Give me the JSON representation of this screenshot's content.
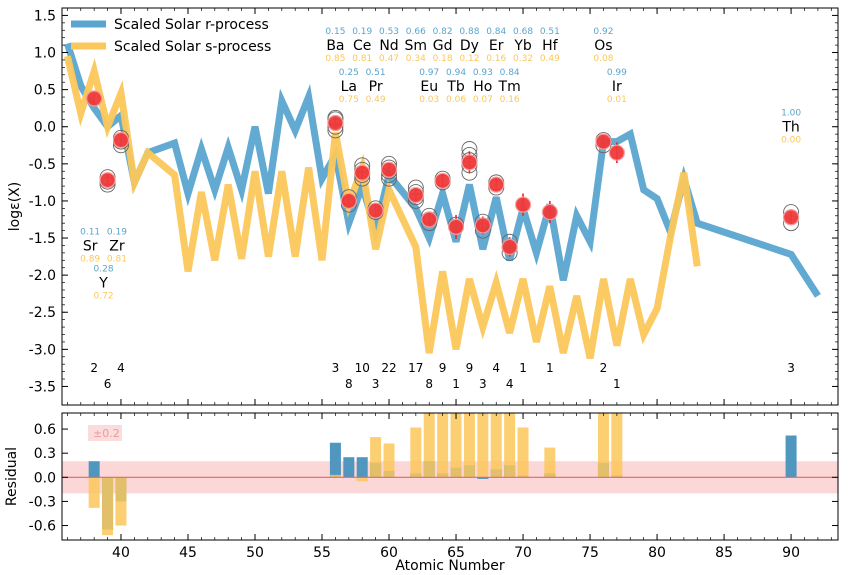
{
  "chart_data": [
    {
      "type": "line",
      "panel": "main",
      "xlabel": "Atomic Number",
      "ylabel": "logε(X)",
      "xlim": [
        35.6,
        93.5
      ],
      "ylim": [
        -3.75,
        1.6
      ],
      "yticks": [
        "1.5",
        "1.0",
        "0.5",
        "0.0",
        "-0.5",
        "-1.0",
        "-1.5",
        "-2.0",
        "-2.5",
        "-3.0",
        "-3.5"
      ],
      "ytick_values": [
        1.5,
        1.0,
        0.5,
        0.0,
        -0.5,
        -1.0,
        -1.5,
        -2.0,
        -2.5,
        -3.0,
        -3.5
      ],
      "legend_position": "top-left",
      "series": [
        {
          "name": "Scaled Solar r-process",
          "color": "#5aa5cf",
          "x": [
            36,
            37,
            38,
            39,
            40,
            41,
            42,
            44,
            45,
            46,
            47,
            48,
            49,
            50,
            51,
            52,
            53,
            54,
            55,
            56,
            57,
            58,
            59,
            60,
            62,
            63,
            64,
            65,
            66,
            67,
            68,
            69,
            70,
            71,
            72,
            73,
            74,
            75,
            76,
            77,
            78,
            79,
            80,
            81,
            82,
            83,
            90,
            92
          ],
          "y": [
            1.12,
            0.55,
            0.25,
            0.0,
            0.15,
            -0.75,
            -0.35,
            -0.22,
            -0.9,
            -0.3,
            -0.85,
            -0.28,
            -0.85,
            0.0,
            -0.9,
            0.35,
            -0.05,
            0.4,
            -0.7,
            -0.38,
            -1.3,
            -0.8,
            -1.4,
            -0.65,
            -1.1,
            -1.5,
            -0.9,
            -1.55,
            -0.78,
            -1.65,
            -0.95,
            -1.8,
            -1.1,
            -1.7,
            -1.05,
            -2.07,
            -1.2,
            -1.55,
            -0.2,
            -0.2,
            -0.1,
            -0.85,
            -0.97,
            -1.42,
            -0.7,
            -1.3,
            -1.72,
            -2.28
          ]
        },
        {
          "name": "Scaled Solar s-process",
          "color": "#fcc75a",
          "x": [
            36,
            37,
            38,
            39,
            40,
            41,
            42,
            44,
            45,
            46,
            47,
            48,
            49,
            50,
            51,
            52,
            53,
            54,
            55,
            56,
            57,
            58,
            59,
            60,
            62,
            63,
            64,
            65,
            66,
            67,
            68,
            69,
            70,
            71,
            72,
            73,
            74,
            75,
            76,
            77,
            78,
            79,
            80,
            81,
            82,
            83
          ],
          "y": [
            0.95,
            0.18,
            0.75,
            0.0,
            0.45,
            -0.75,
            -0.35,
            -0.65,
            -1.95,
            -0.88,
            -1.8,
            -0.78,
            -1.78,
            -0.6,
            -1.75,
            -0.6,
            -1.75,
            -0.55,
            -1.8,
            -0.08,
            -1.05,
            -0.55,
            -1.65,
            -0.85,
            -1.62,
            -3.05,
            -1.95,
            -3.0,
            -2.05,
            -2.7,
            -2.1,
            -2.78,
            -2.05,
            -2.9,
            -2.15,
            -3.05,
            -2.28,
            -3.12,
            -2.05,
            -2.95,
            -2.05,
            -2.8,
            -2.45,
            -1.48,
            -0.62,
            -1.88
          ]
        }
      ],
      "observed": {
        "x": [
          38,
          39,
          40,
          56,
          57,
          58,
          59,
          60,
          62,
          63,
          64,
          65,
          66,
          67,
          68,
          69,
          70,
          72,
          76,
          77,
          90
        ],
        "y": [
          0.38,
          -0.72,
          -0.18,
          0.05,
          -1.0,
          -0.62,
          -1.13,
          -0.58,
          -0.92,
          -1.25,
          -0.73,
          -1.35,
          -0.48,
          -1.33,
          -0.78,
          -1.62,
          -1.05,
          -1.15,
          -0.2,
          -0.35,
          -1.22
        ],
        "yerr": [
          0.06,
          0.07,
          0.08,
          0.08,
          0.09,
          0.08,
          0.08,
          0.08,
          0.09,
          0.1,
          0.09,
          0.16,
          0.15,
          0.12,
          0.1,
          0.13,
          0.15,
          0.15,
          0.08,
          0.14,
          0.08
        ]
      },
      "measurement_rings": [
        {
          "x": 38,
          "y": [
            0.38
          ]
        },
        {
          "x": 39,
          "y": [
            -0.68,
            -0.74,
            -0.78
          ]
        },
        {
          "x": 40,
          "y": [
            -0.15,
            -0.2,
            -0.25
          ]
        },
        {
          "x": 56,
          "y": [
            0.1,
            0.05,
            0.0,
            -0.05,
            0.12
          ]
        },
        {
          "x": 57,
          "y": [
            -0.95,
            -1.05
          ]
        },
        {
          "x": 58,
          "y": [
            -0.52,
            -0.58,
            -0.65,
            -0.7
          ]
        },
        {
          "x": 59,
          "y": [
            -1.1,
            -1.15
          ]
        },
        {
          "x": 60,
          "y": [
            -0.5,
            -0.55,
            -0.6,
            -0.65,
            -0.7
          ]
        },
        {
          "x": 62,
          "y": [
            -0.82,
            -0.88,
            -0.95,
            -1.0
          ]
        },
        {
          "x": 63,
          "y": [
            -1.2,
            -1.25,
            -1.3
          ]
        },
        {
          "x": 64,
          "y": [
            -0.7,
            -0.75
          ]
        },
        {
          "x": 65,
          "y": [
            -1.32
          ]
        },
        {
          "x": 66,
          "y": [
            -0.3,
            -0.38,
            -0.45,
            -0.52,
            -0.62
          ]
        },
        {
          "x": 67,
          "y": [
            -1.28,
            -1.33,
            -1.4
          ]
        },
        {
          "x": 68,
          "y": [
            -0.75,
            -0.82
          ]
        },
        {
          "x": 69,
          "y": [
            -1.55,
            -1.62,
            -1.7
          ]
        },
        {
          "x": 76,
          "y": [
            -0.18,
            -0.25
          ]
        },
        {
          "x": 90,
          "y": [
            -1.15,
            -1.22,
            -1.3
          ]
        }
      ],
      "element_labels": [
        {
          "symbol": "Sr",
          "x": 37.7,
          "y": -1.6,
          "r": "0.11",
          "s": "0.89"
        },
        {
          "symbol": "Zr",
          "x": 39.7,
          "y": -1.6,
          "r": "0.19",
          "s": "0.81"
        },
        {
          "symbol": "Y",
          "x": 38.7,
          "y": -2.1,
          "r": "0.28",
          "s": "0.72"
        },
        {
          "symbol": "Ba",
          "x": 56.0,
          "y": 1.1,
          "r": "0.15",
          "s": "0.85"
        },
        {
          "symbol": "Ce",
          "x": 58.0,
          "y": 1.1,
          "r": "0.19",
          "s": "0.81"
        },
        {
          "symbol": "Nd",
          "x": 60.0,
          "y": 1.1,
          "r": "0.53",
          "s": "0.47"
        },
        {
          "symbol": "Sm",
          "x": 62.0,
          "y": 1.1,
          "r": "0.66",
          "s": "0.34"
        },
        {
          "symbol": "Gd",
          "x": 64.0,
          "y": 1.1,
          "r": "0.82",
          "s": "0.18"
        },
        {
          "symbol": "Dy",
          "x": 66.0,
          "y": 1.1,
          "r": "0.88",
          "s": "0.12"
        },
        {
          "symbol": "Er",
          "x": 68.0,
          "y": 1.1,
          "r": "0.84",
          "s": "0.16"
        },
        {
          "symbol": "Yb",
          "x": 70.0,
          "y": 1.1,
          "r": "0.68",
          "s": "0.32"
        },
        {
          "symbol": "Hf",
          "x": 72.0,
          "y": 1.1,
          "r": "0.51",
          "s": "0.49"
        },
        {
          "symbol": "Os",
          "x": 76.0,
          "y": 1.1,
          "r": "0.92",
          "s": "0.08"
        },
        {
          "symbol": "La",
          "x": 57.0,
          "y": 0.55,
          "r": "0.25",
          "s": "0.75"
        },
        {
          "symbol": "Pr",
          "x": 59.0,
          "y": 0.55,
          "r": "0.51",
          "s": "0.49"
        },
        {
          "symbol": "Eu",
          "x": 63.0,
          "y": 0.55,
          "r": "0.97",
          "s": "0.03"
        },
        {
          "symbol": "Tb",
          "x": 65.0,
          "y": 0.55,
          "r": "0.94",
          "s": "0.06"
        },
        {
          "symbol": "Ho",
          "x": 67.0,
          "y": 0.55,
          "r": "0.93",
          "s": "0.07"
        },
        {
          "symbol": "Tm",
          "x": 69.0,
          "y": 0.55,
          "r": "0.84",
          "s": "0.16"
        },
        {
          "symbol": "Ir",
          "x": 77.0,
          "y": 0.55,
          "r": "0.99",
          "s": "0.01"
        },
        {
          "symbol": "Th",
          "x": 90.0,
          "y": 0.0,
          "r": "1.00",
          "s": "0.00"
        }
      ],
      "measurement_counts": [
        {
          "x": 38,
          "row": 1,
          "label": "2"
        },
        {
          "x": 40,
          "row": 1,
          "label": "4"
        },
        {
          "x": 39,
          "row": 2,
          "label": "6"
        },
        {
          "x": 56,
          "row": 1,
          "label": "3"
        },
        {
          "x": 58,
          "row": 1,
          "label": "10"
        },
        {
          "x": 60,
          "row": 1,
          "label": "22"
        },
        {
          "x": 57,
          "row": 2,
          "label": "8"
        },
        {
          "x": 59,
          "row": 2,
          "label": "3"
        },
        {
          "x": 62,
          "row": 1,
          "label": "17"
        },
        {
          "x": 64,
          "row": 1,
          "label": "9"
        },
        {
          "x": 66,
          "row": 1,
          "label": "9"
        },
        {
          "x": 68,
          "row": 1,
          "label": "4"
        },
        {
          "x": 70,
          "row": 1,
          "label": "1"
        },
        {
          "x": 72,
          "row": 1,
          "label": "1"
        },
        {
          "x": 63,
          "row": 2,
          "label": "8"
        },
        {
          "x": 65,
          "row": 2,
          "label": "1"
        },
        {
          "x": 67,
          "row": 2,
          "label": "3"
        },
        {
          "x": 69,
          "row": 2,
          "label": "4"
        },
        {
          "x": 76,
          "row": 1,
          "label": "2"
        },
        {
          "x": 77,
          "row": 2,
          "label": "1"
        },
        {
          "x": 90,
          "row": 1,
          "label": "3"
        }
      ]
    },
    {
      "type": "bar",
      "panel": "residual",
      "xlabel": "Atomic Number",
      "ylabel": "Residual",
      "xlim": [
        35.6,
        93.5
      ],
      "ylim": [
        -0.78,
        0.8
      ],
      "xticks": [
        "40",
        "45",
        "50",
        "55",
        "60",
        "65",
        "70",
        "75",
        "80",
        "85",
        "90"
      ],
      "xtick_values": [
        40,
        45,
        50,
        55,
        60,
        65,
        70,
        75,
        80,
        85,
        90
      ],
      "yticks": [
        "0.6",
        "0.3",
        "0.0",
        "-0.3",
        "-0.6"
      ],
      "ytick_values": [
        0.6,
        0.3,
        0.0,
        -0.3,
        -0.6
      ],
      "band": {
        "label": "±0.2",
        "value": 0.2
      },
      "series": [
        {
          "name": "r-process residual",
          "x": [
            38,
            39,
            40,
            56,
            57,
            58,
            59,
            60,
            62,
            63,
            64,
            65,
            66,
            67,
            68,
            69,
            70,
            72,
            76,
            77,
            90
          ],
          "values": [
            0.2,
            -0.65,
            -0.3,
            0.43,
            0.25,
            0.25,
            0.18,
            0.08,
            0.05,
            0.2,
            0.05,
            0.12,
            0.15,
            -0.02,
            0.1,
            0.15,
            0.02,
            0.05,
            0.18,
            0.02,
            0.52
          ]
        },
        {
          "name": "s-process residual",
          "x": [
            38,
            39,
            40,
            56,
            57,
            58,
            59,
            60,
            62,
            63,
            64,
            65,
            66,
            67,
            68,
            69,
            70,
            72,
            76,
            77
          ],
          "values": [
            -0.38,
            -0.72,
            -0.6,
            0.03,
            0.0,
            -0.05,
            0.5,
            0.42,
            0.62,
            0.8,
            0.8,
            0.8,
            0.8,
            0.8,
            0.8,
            0.8,
            0.62,
            0.37,
            0.8,
            0.8
          ]
        }
      ]
    }
  ]
}
